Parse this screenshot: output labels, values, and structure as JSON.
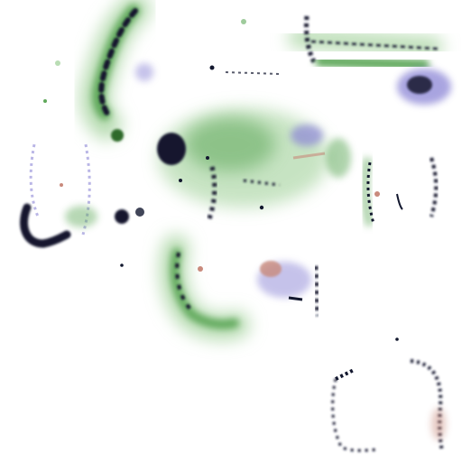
{
  "palette": {
    "background": "#ffffff",
    "green_dark": "#2f6b2a",
    "green_mid": "#5fa85a",
    "green_light": "#b9ddb4",
    "ink": "#12172e",
    "violet": "#8c86d6",
    "rose": "#c98a7c"
  }
}
